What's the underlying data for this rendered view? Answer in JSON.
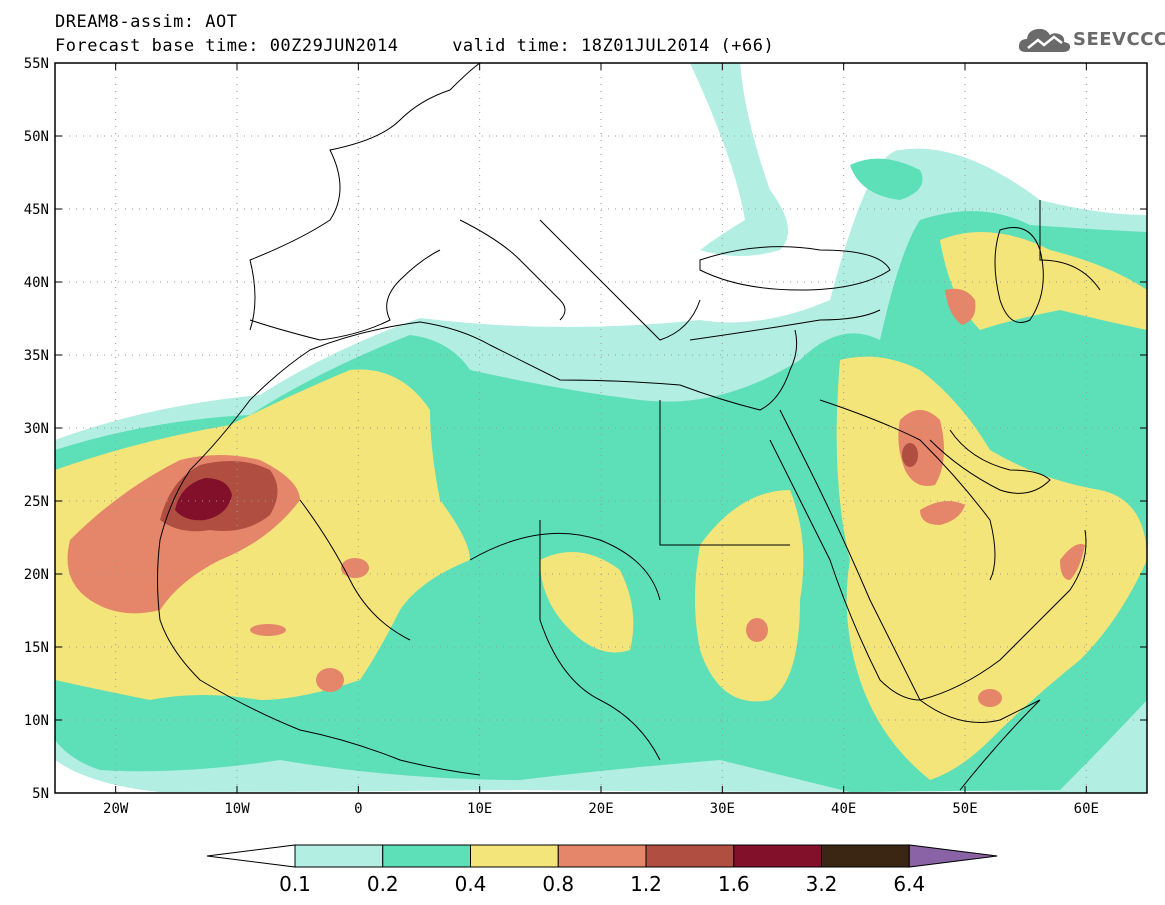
{
  "header": {
    "line1": "DREAM8-assim: AOT",
    "line2": "Forecast base time: 00Z29JUN2014     valid time: 18Z01JUL2014 (+66)"
  },
  "logo": {
    "text": "SEEVCCC",
    "icon": "cloud-icon",
    "color": "#6a6a6a"
  },
  "map": {
    "lon_range": [
      -25,
      65
    ],
    "lat_range": [
      5,
      55
    ],
    "lat_ticks": [
      {
        "value": 55,
        "label": "55N"
      },
      {
        "value": 50,
        "label": "50N"
      },
      {
        "value": 45,
        "label": "45N"
      },
      {
        "value": 40,
        "label": "40N"
      },
      {
        "value": 35,
        "label": "35N"
      },
      {
        "value": 30,
        "label": "30N"
      },
      {
        "value": 25,
        "label": "25N"
      },
      {
        "value": 20,
        "label": "20N"
      },
      {
        "value": 15,
        "label": "15N"
      },
      {
        "value": 10,
        "label": "10N"
      },
      {
        "value": 5,
        "label": "5N"
      }
    ],
    "lon_ticks": [
      {
        "value": -20,
        "label": "20W"
      },
      {
        "value": -10,
        "label": "10W"
      },
      {
        "value": 0,
        "label": "0"
      },
      {
        "value": 10,
        "label": "10E"
      },
      {
        "value": 20,
        "label": "20E"
      },
      {
        "value": 30,
        "label": "30E"
      },
      {
        "value": 40,
        "label": "40E"
      },
      {
        "value": 50,
        "label": "50E"
      },
      {
        "value": 60,
        "label": "60E"
      }
    ],
    "grid": "dotted"
  },
  "colorbar": {
    "levels": [
      "0.1",
      "0.2",
      "0.4",
      "0.8",
      "1.2",
      "1.6",
      "3.2",
      "6.4"
    ],
    "colors": [
      "#ffffff",
      "#b2eee2",
      "#5ddfb8",
      "#f4e57a",
      "#e5866a",
      "#b04f41",
      "#82102a",
      "#3b2614",
      "#8a62a6"
    ]
  }
}
